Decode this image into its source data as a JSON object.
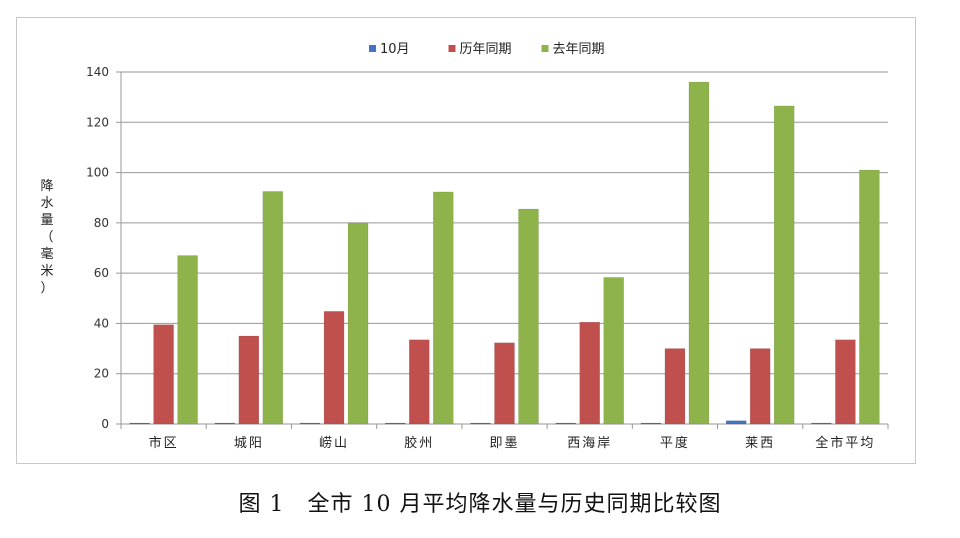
{
  "caption": "图 1　全市 10 月平均降水量与历史同期比较图",
  "chart_data": {
    "type": "bar",
    "title": "",
    "xlabel": "",
    "ylabel": "降水量（毫米）",
    "ylim": [
      0,
      140
    ],
    "yticks": [
      0,
      20,
      40,
      60,
      80,
      100,
      120,
      140
    ],
    "grid": true,
    "legend_position": "top-center",
    "categories": [
      "市区",
      "城阳",
      "崂山",
      "胶州",
      "即墨",
      "西海岸",
      "平度",
      "莱西",
      "全市平均"
    ],
    "series": [
      {
        "name": "10月",
        "color": "#4472c4",
        "values": [
          0.1,
          0.4,
          0.4,
          0.4,
          0.1,
          0.4,
          0.1,
          1.3,
          0.4
        ]
      },
      {
        "name": "历年同期",
        "color": "#c0504d",
        "values": [
          39.5,
          35,
          44.8,
          33.5,
          32.3,
          40.5,
          30,
          30,
          33.5
        ]
      },
      {
        "name": "去年同期",
        "color": "#8db34a",
        "values": [
          67,
          92.5,
          80,
          92.3,
          85.5,
          58.3,
          136,
          126.5,
          101
        ]
      }
    ]
  }
}
